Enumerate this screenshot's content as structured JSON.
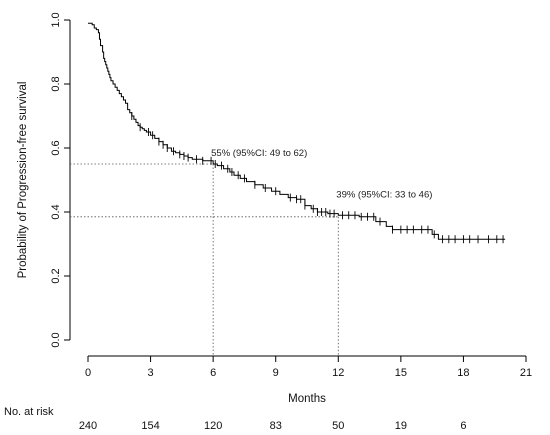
{
  "chart_data": {
    "type": "line",
    "xlabel": "Months",
    "ylabel": "Probability of Progression-free survival",
    "xlim": [
      0,
      21
    ],
    "ylim": [
      0,
      1
    ],
    "x_ticks": [
      0,
      3,
      6,
      9,
      12,
      15,
      18,
      21
    ],
    "x_tick_labels": [
      "0",
      "3",
      "6",
      "9",
      "12",
      "15",
      "18",
      "21"
    ],
    "y_ticks": [
      0,
      0.2,
      0.4,
      0.6,
      0.8,
      1.0
    ],
    "y_tick_labels": [
      "0.0",
      "0.2",
      "0.4",
      "0.6",
      "0.8",
      "1.0"
    ],
    "grid": false,
    "series": [
      {
        "step": true,
        "color": "#000000",
        "x": [
          0,
          0.2,
          0.3,
          0.4,
          0.5,
          0.55,
          0.6,
          0.7,
          0.75,
          0.8,
          0.85,
          0.9,
          0.95,
          1.0,
          1.05,
          1.1,
          1.2,
          1.3,
          1.4,
          1.5,
          1.6,
          1.7,
          1.8,
          1.9,
          2.0,
          2.1,
          2.2,
          2.3,
          2.4,
          2.5,
          2.6,
          2.7,
          2.8,
          3.0,
          3.2,
          3.4,
          3.6,
          3.8,
          4.0,
          4.2,
          4.4,
          4.6,
          4.8,
          5.0,
          5.5,
          6.0,
          6.2,
          6.5,
          6.8,
          7.0,
          7.3,
          7.6,
          8.0,
          8.4,
          8.8,
          9.2,
          9.6,
          10.0,
          10.4,
          10.7,
          11.0,
          11.5,
          12.0,
          13.0,
          13.8,
          14.3,
          14.6,
          16.5,
          16.8,
          20.0
        ],
        "y": [
          0.99,
          0.985,
          0.975,
          0.97,
          0.96,
          0.94,
          0.92,
          0.9,
          0.88,
          0.87,
          0.86,
          0.85,
          0.84,
          0.83,
          0.82,
          0.81,
          0.8,
          0.79,
          0.78,
          0.77,
          0.76,
          0.75,
          0.74,
          0.72,
          0.71,
          0.7,
          0.69,
          0.68,
          0.67,
          0.665,
          0.66,
          0.655,
          0.65,
          0.64,
          0.63,
          0.62,
          0.61,
          0.6,
          0.59,
          0.585,
          0.58,
          0.575,
          0.57,
          0.565,
          0.56,
          0.55,
          0.545,
          0.535,
          0.525,
          0.515,
          0.505,
          0.495,
          0.485,
          0.475,
          0.465,
          0.455,
          0.445,
          0.44,
          0.42,
          0.41,
          0.4,
          0.395,
          0.39,
          0.385,
          0.37,
          0.355,
          0.345,
          0.33,
          0.315,
          0.315
        ],
        "censor_x": [
          2.1,
          2.5,
          2.9,
          3.1,
          3.4,
          3.6,
          3.8,
          4.1,
          4.4,
          4.6,
          4.8,
          5.2,
          5.5,
          5.9,
          6.1,
          6.4,
          6.7,
          6.9,
          7.2,
          7.5,
          8.0,
          8.5,
          9.0,
          9.7,
          10.0,
          10.2,
          10.4,
          10.8,
          11.0,
          11.2,
          11.4,
          11.6,
          11.8,
          12.2,
          12.5,
          12.8,
          13.1,
          13.4,
          13.7,
          14.0,
          14.6,
          15.0,
          15.3,
          15.6,
          16.0,
          16.3,
          16.6,
          17.0,
          17.3,
          17.6,
          18.0,
          18.3,
          18.7,
          19.2,
          19.6,
          19.9
        ]
      }
    ],
    "reference_lines": [
      {
        "x": 6,
        "y": 0.55
      },
      {
        "x": 12,
        "y": 0.385
      }
    ],
    "annotations": [
      {
        "text": "55% (95%CI: 49 to 62)",
        "x": 6,
        "y": 0.575
      },
      {
        "text": "39% (95%CI: 33 to 46)",
        "x": 12,
        "y": 0.445
      }
    ],
    "number_at_risk": {
      "label": "No. at risk",
      "x": [
        0,
        3,
        6,
        9,
        12,
        15,
        18
      ],
      "values": [
        "240",
        "154",
        "120",
        "83",
        "50",
        "19",
        "6"
      ]
    }
  }
}
